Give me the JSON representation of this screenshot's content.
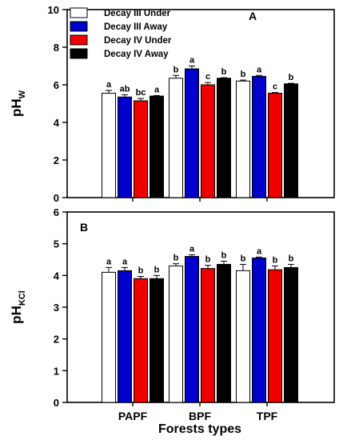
{
  "chart_data": [
    {
      "type": "bar",
      "panel_label": "A",
      "ylabel": "pH",
      "ylabel_sub": "W",
      "ylim": [
        0,
        10
      ],
      "yticks": [
        "0",
        "2",
        "4",
        "6",
        "8",
        "10"
      ],
      "categories": [
        "PAPF",
        "BPF",
        "TPF"
      ],
      "series": [
        {
          "name": "Decay III Under",
          "values": [
            5.55,
            6.35,
            6.2
          ],
          "errors": [
            0.15,
            0.15,
            0.05
          ],
          "letters": [
            "a",
            "b",
            "b"
          ],
          "color": "#ffffff"
        },
        {
          "name": "Decay III Away",
          "values": [
            5.35,
            6.85,
            6.45
          ],
          "errors": [
            0.12,
            0.15,
            0.05
          ],
          "letters": [
            "ab",
            "a",
            "a"
          ],
          "color": "#0000cc"
        },
        {
          "name": "Decay IV Under",
          "values": [
            5.15,
            6.0,
            5.55
          ],
          "errors": [
            0.12,
            0.12,
            0.04
          ],
          "letters": [
            "bc",
            "c",
            "c"
          ],
          "color": "#ee0000"
        },
        {
          "name": "Decay IV Away",
          "values": [
            5.4,
            6.35,
            6.05
          ],
          "errors": [
            0.03,
            0.03,
            0.03
          ],
          "letters": [
            "a",
            "b",
            "b"
          ],
          "color": "#000000"
        }
      ],
      "legend": {
        "position": "top-left",
        "entries": [
          "Decay III Under",
          "Decay III Away",
          "Decay IV Under",
          "Decay IV Away"
        ]
      }
    },
    {
      "type": "bar",
      "panel_label": "B",
      "ylabel": "pH",
      "ylabel_sub": "KCl",
      "ylim": [
        0,
        6
      ],
      "yticks": [
        "0",
        "1",
        "2",
        "3",
        "4",
        "5",
        "6"
      ],
      "categories": [
        "PAPF",
        "BPF",
        "TPF"
      ],
      "xlabel": "Forests types",
      "series": [
        {
          "name": "Decay III Under",
          "values": [
            4.1,
            4.3,
            4.15
          ],
          "errors": [
            0.15,
            0.07,
            0.2
          ],
          "letters": [
            "a",
            "b",
            "b"
          ],
          "color": "#ffffff"
        },
        {
          "name": "Decay III Away",
          "values": [
            4.15,
            4.6,
            4.55
          ],
          "errors": [
            0.1,
            0.05,
            0.03
          ],
          "letters": [
            "a",
            "a",
            "a"
          ],
          "color": "#0000cc"
        },
        {
          "name": "Decay IV Under",
          "values": [
            3.9,
            4.22,
            4.18
          ],
          "errors": [
            0.07,
            0.1,
            0.12
          ],
          "letters": [
            "b",
            "b",
            "b"
          ],
          "color": "#ee0000"
        },
        {
          "name": "Decay IV Away",
          "values": [
            3.9,
            4.35,
            4.25
          ],
          "errors": [
            0.1,
            0.1,
            0.1
          ],
          "letters": [
            "b",
            "b",
            "b"
          ],
          "color": "#000000"
        }
      ]
    }
  ]
}
